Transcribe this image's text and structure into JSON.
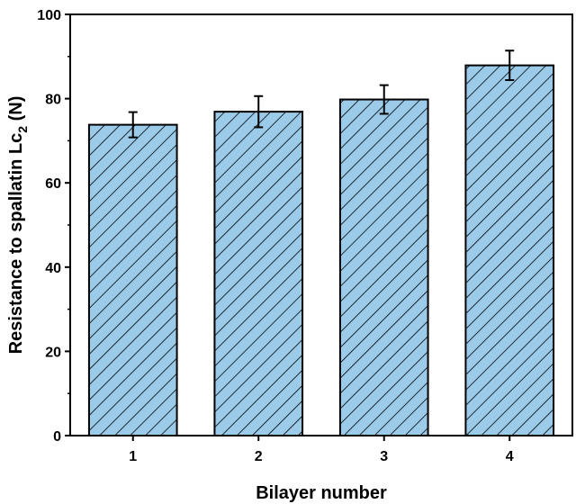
{
  "chart_data": {
    "type": "bar",
    "categories": [
      "1",
      "2",
      "3",
      "4"
    ],
    "values": [
      73.8,
      76.9,
      79.8,
      87.9
    ],
    "errors": [
      3.0,
      3.7,
      3.4,
      3.5
    ],
    "xlabel": "Bilayer number",
    "ylabel_main": "Resistance to spallatin Lc",
    "ylabel_sub": "2",
    "ylabel_unit": " (N)",
    "ylim": [
      0,
      100
    ],
    "yticks": [
      0,
      20,
      40,
      60,
      80,
      100
    ],
    "ytick_labels": [
      "0",
      "20",
      "40",
      "60",
      "80",
      "100"
    ],
    "bar_color": "#9ccbea",
    "hatch": "diagonal",
    "grid": false,
    "legend": "none"
  }
}
